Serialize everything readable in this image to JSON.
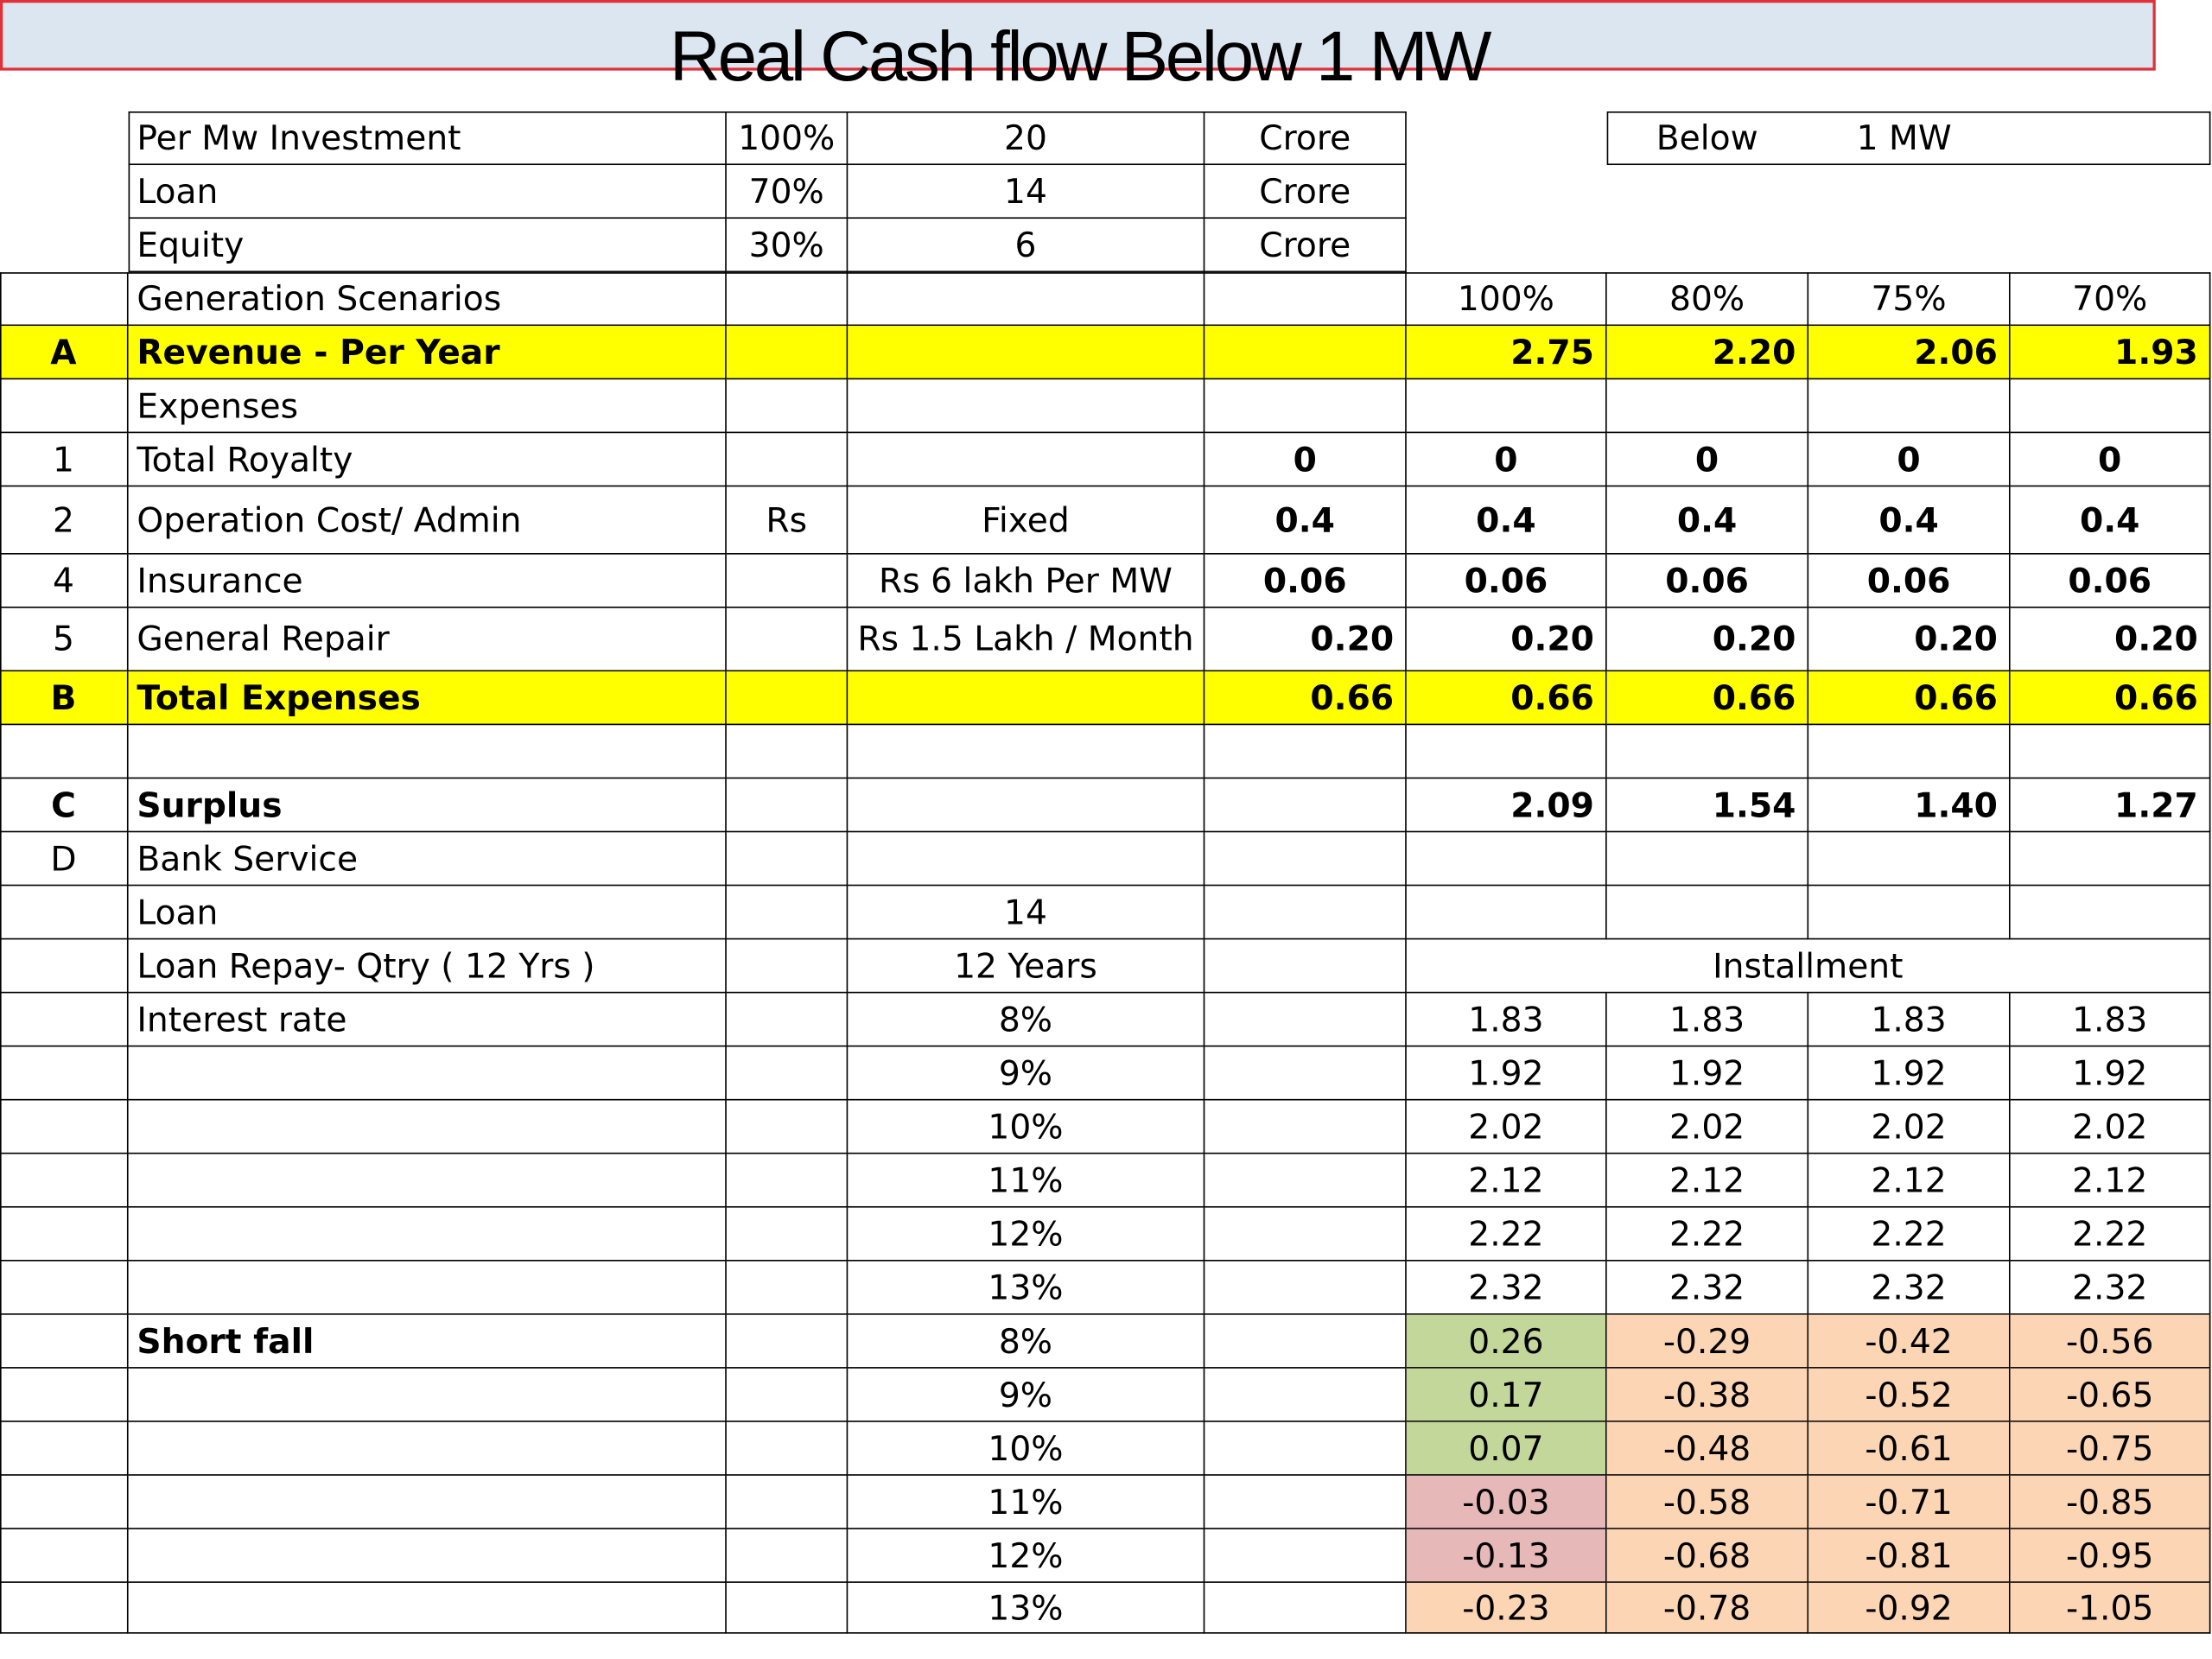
{
  "title": "Real Cash flow Below 1 MW",
  "below_box": {
    "label": "Below",
    "value": "1 MW"
  },
  "colors": {
    "highlight": "#ffff00",
    "title_fill": "#dce6f1",
    "title_border": "#e0303a",
    "positive": "#c4d79b",
    "negative_small": "#e6b8b7",
    "negative": "#fcd5b4"
  },
  "investment": [
    {
      "label": "Per Mw Investment",
      "pct": "100%",
      "value": "20",
      "unit": "Crore"
    },
    {
      "label": "Loan",
      "pct": "70%",
      "value": "14",
      "unit": "Crore"
    },
    {
      "label": "Equity",
      "pct": "30%",
      "value": "6",
      "unit": "Crore"
    }
  ],
  "scenarios": {
    "label": "Generation Scenarios",
    "values": [
      "100%",
      "80%",
      "75%",
      "70%"
    ]
  },
  "revenue": {
    "id": "A",
    "label": "Revenue - Per Year",
    "values": [
      "2.75",
      "2.20",
      "2.06",
      "1.93"
    ]
  },
  "expenses": {
    "label": "Expenses",
    "items": [
      {
        "id": "1",
        "label": "Total Royalty",
        "c3": "",
        "c4": "",
        "base": "0",
        "values": [
          "0",
          "0",
          "0",
          "0"
        ]
      },
      {
        "id": "2",
        "label": "Operation Cost/ Admin",
        "c3": "Rs",
        "c4": "Fixed",
        "base": "0.4",
        "values": [
          "0.4",
          "0.4",
          "0.4",
          "0.4"
        ]
      },
      {
        "id": "4",
        "label": "Insurance",
        "c3": "",
        "c4": "Rs 6 lakh Per MW",
        "base": "0.06",
        "values": [
          "0.06",
          "0.06",
          "0.06",
          "0.06"
        ]
      },
      {
        "id": "5",
        "label": "General Repair",
        "c3": "",
        "c4": "Rs 1.5 Lakh / Month",
        "base": "0.20",
        "values": [
          "0.20",
          "0.20",
          "0.20",
          "0.20"
        ]
      }
    ]
  },
  "total_expenses": {
    "id": "B",
    "label": "Total Expenses",
    "base": "0.66",
    "values": [
      "0.66",
      "0.66",
      "0.66",
      "0.66"
    ]
  },
  "surplus": {
    "id": "C",
    "label": "Surplus",
    "values": [
      "2.09",
      "1.54",
      "1.40",
      "1.27"
    ]
  },
  "bank_service": {
    "id": "D",
    "label": "Bank Service"
  },
  "loan": {
    "label": "Loan",
    "value": "14"
  },
  "loan_repay": {
    "label": "Loan Repay- Qtry ( 12 Yrs )",
    "value": "12 Years",
    "installment_label": "Installment"
  },
  "interest": {
    "label": "Interest rate",
    "rows": [
      {
        "rate": "8%",
        "values": [
          "1.83",
          "1.83",
          "1.83",
          "1.83"
        ]
      },
      {
        "rate": "9%",
        "values": [
          "1.92",
          "1.92",
          "1.92",
          "1.92"
        ]
      },
      {
        "rate": "10%",
        "values": [
          "2.02",
          "2.02",
          "2.02",
          "2.02"
        ]
      },
      {
        "rate": "11%",
        "values": [
          "2.12",
          "2.12",
          "2.12",
          "2.12"
        ]
      },
      {
        "rate": "12%",
        "values": [
          "2.22",
          "2.22",
          "2.22",
          "2.22"
        ]
      },
      {
        "rate": "13%",
        "values": [
          "2.32",
          "2.32",
          "2.32",
          "2.32"
        ]
      }
    ]
  },
  "shortfall": {
    "label": "Short fall",
    "rows": [
      {
        "rate": "8%",
        "values": [
          "0.26",
          "-0.29",
          "-0.42",
          "-0.56"
        ]
      },
      {
        "rate": "9%",
        "values": [
          "0.17",
          "-0.38",
          "-0.52",
          "-0.65"
        ]
      },
      {
        "rate": "10%",
        "values": [
          "0.07",
          "-0.48",
          "-0.61",
          "-0.75"
        ]
      },
      {
        "rate": "11%",
        "values": [
          "-0.03",
          "-0.58",
          "-0.71",
          "-0.85"
        ]
      },
      {
        "rate": "12%",
        "values": [
          "-0.13",
          "-0.68",
          "-0.81",
          "-0.95"
        ]
      },
      {
        "rate": "13%",
        "values": [
          "-0.23",
          "-0.78",
          "-0.92",
          "-1.05"
        ]
      }
    ]
  }
}
